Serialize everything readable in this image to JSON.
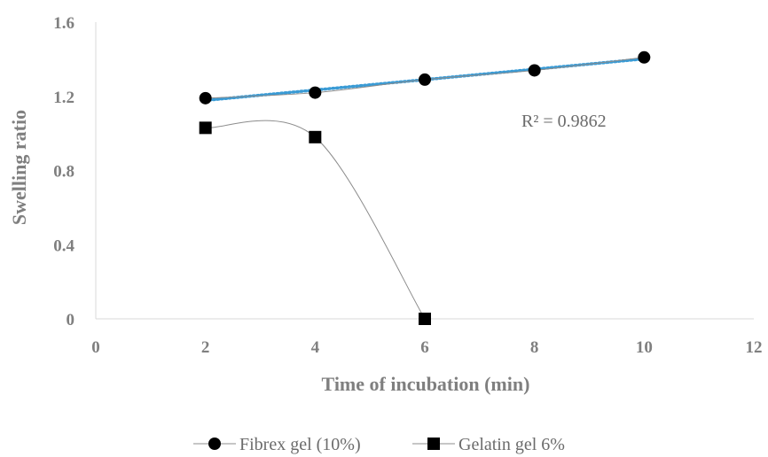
{
  "chart_data": {
    "type": "scatter",
    "xlabel": "Time of incubation (min)",
    "ylabel": "Swelling ratio",
    "xlim": [
      0,
      12
    ],
    "ylim": [
      0,
      1.6
    ],
    "x_ticks": [
      "0",
      "2",
      "4",
      "6",
      "8",
      "10",
      "12"
    ],
    "y_ticks": [
      "0",
      "0.4",
      "0.8",
      "1.2",
      "1.6"
    ],
    "grid": false,
    "legend_position": "bottom",
    "series": [
      {
        "name": "Fibrex gel (10%)",
        "marker": "circle",
        "line": "smooth",
        "color": "#000000",
        "x": [
          2,
          4,
          6,
          8,
          10
        ],
        "y": [
          1.19,
          1.22,
          1.29,
          1.34,
          1.41
        ]
      },
      {
        "name": "Gelatin gel 6%",
        "marker": "square",
        "line": "smooth",
        "color": "#000000",
        "x": [
          2,
          4,
          6
        ],
        "y": [
          1.03,
          0.98,
          0.0
        ]
      }
    ],
    "trendline": {
      "series": "Fibrex gel (10%)",
      "type": "linear",
      "style": "dotted",
      "color": "#3a9bd5",
      "x_range": [
        2,
        10
      ],
      "r_squared_label": "R² = 0.9862"
    }
  }
}
